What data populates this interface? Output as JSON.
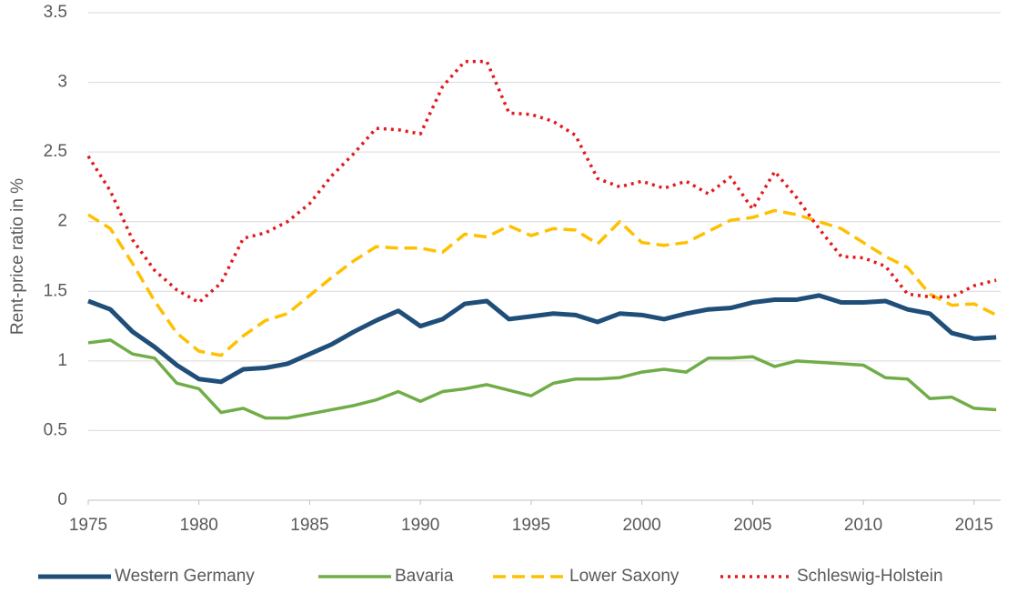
{
  "chart_data": {
    "type": "line",
    "y_label": "Rent-price ratio in %",
    "x": [
      1975,
      1976,
      1977,
      1978,
      1979,
      1980,
      1981,
      1982,
      1983,
      1984,
      1985,
      1986,
      1987,
      1988,
      1989,
      1990,
      1991,
      1992,
      1993,
      1994,
      1995,
      1996,
      1997,
      1998,
      1999,
      2000,
      2001,
      2002,
      2003,
      2004,
      2005,
      2006,
      2007,
      2008,
      2009,
      2010,
      2011,
      2012,
      2013,
      2014,
      2015,
      2016
    ],
    "series": [
      {
        "name": "Western Germany",
        "color": "#1f4e79",
        "dash": "solid",
        "values": [
          1.43,
          1.37,
          1.21,
          1.1,
          0.97,
          0.87,
          0.85,
          0.94,
          0.95,
          0.98,
          1.05,
          1.12,
          1.21,
          1.29,
          1.36,
          1.25,
          1.3,
          1.41,
          1.43,
          1.3,
          1.32,
          1.34,
          1.33,
          1.28,
          1.34,
          1.33,
          1.3,
          1.34,
          1.37,
          1.38,
          1.42,
          1.44,
          1.44,
          1.47,
          1.42,
          1.42,
          1.43,
          1.37,
          1.34,
          1.2,
          1.16,
          1.17
        ]
      },
      {
        "name": "Bavaria",
        "color": "#70ad47",
        "dash": "solid",
        "values": [
          1.13,
          1.15,
          1.05,
          1.02,
          0.84,
          0.8,
          0.63,
          0.66,
          0.59,
          0.59,
          0.62,
          0.65,
          0.68,
          0.72,
          0.78,
          0.71,
          0.78,
          0.8,
          0.83,
          0.79,
          0.75,
          0.84,
          0.87,
          0.87,
          0.88,
          0.92,
          0.94,
          0.92,
          1.02,
          1.02,
          1.03,
          0.96,
          1.0,
          0.99,
          0.98,
          0.97,
          0.88,
          0.87,
          0.73,
          0.74,
          0.66,
          0.65
        ]
      },
      {
        "name": "Lower Saxony",
        "color": "#ffc000",
        "dash": "dashed",
        "values": [
          2.05,
          1.95,
          1.7,
          1.43,
          1.2,
          1.07,
          1.04,
          1.18,
          1.29,
          1.34,
          1.47,
          1.6,
          1.72,
          1.82,
          1.81,
          1.81,
          1.78,
          1.91,
          1.89,
          1.97,
          1.9,
          1.95,
          1.94,
          1.84,
          2.0,
          1.85,
          1.83,
          1.85,
          1.93,
          2.01,
          2.03,
          2.08,
          2.05,
          2.0,
          1.95,
          1.85,
          1.75,
          1.67,
          1.48,
          1.4,
          1.41,
          1.33
        ]
      },
      {
        "name": "Schleswig-Holstein",
        "color": "#e31a1c",
        "dash": "dotted",
        "values": [
          2.47,
          2.22,
          1.87,
          1.65,
          1.51,
          1.42,
          1.56,
          1.88,
          1.92,
          2.0,
          2.13,
          2.33,
          2.49,
          2.67,
          2.66,
          2.63,
          2.97,
          3.15,
          3.15,
          2.78,
          2.77,
          2.72,
          2.62,
          2.31,
          2.25,
          2.29,
          2.24,
          2.29,
          2.2,
          2.32,
          2.09,
          2.36,
          2.17,
          1.95,
          1.75,
          1.74,
          1.68,
          1.48,
          1.46,
          1.46,
          1.54,
          1.58
        ]
      }
    ],
    "xlim": [
      1975,
      2016.2
    ],
    "xticks": [
      1975,
      1980,
      1985,
      1990,
      1995,
      2000,
      2005,
      2010,
      2015
    ],
    "ylim": [
      0,
      3.5
    ],
    "yticks": [
      0,
      0.5,
      1,
      1.5,
      2,
      2.5,
      3,
      3.5
    ],
    "grid": true,
    "legend": "bottom"
  }
}
